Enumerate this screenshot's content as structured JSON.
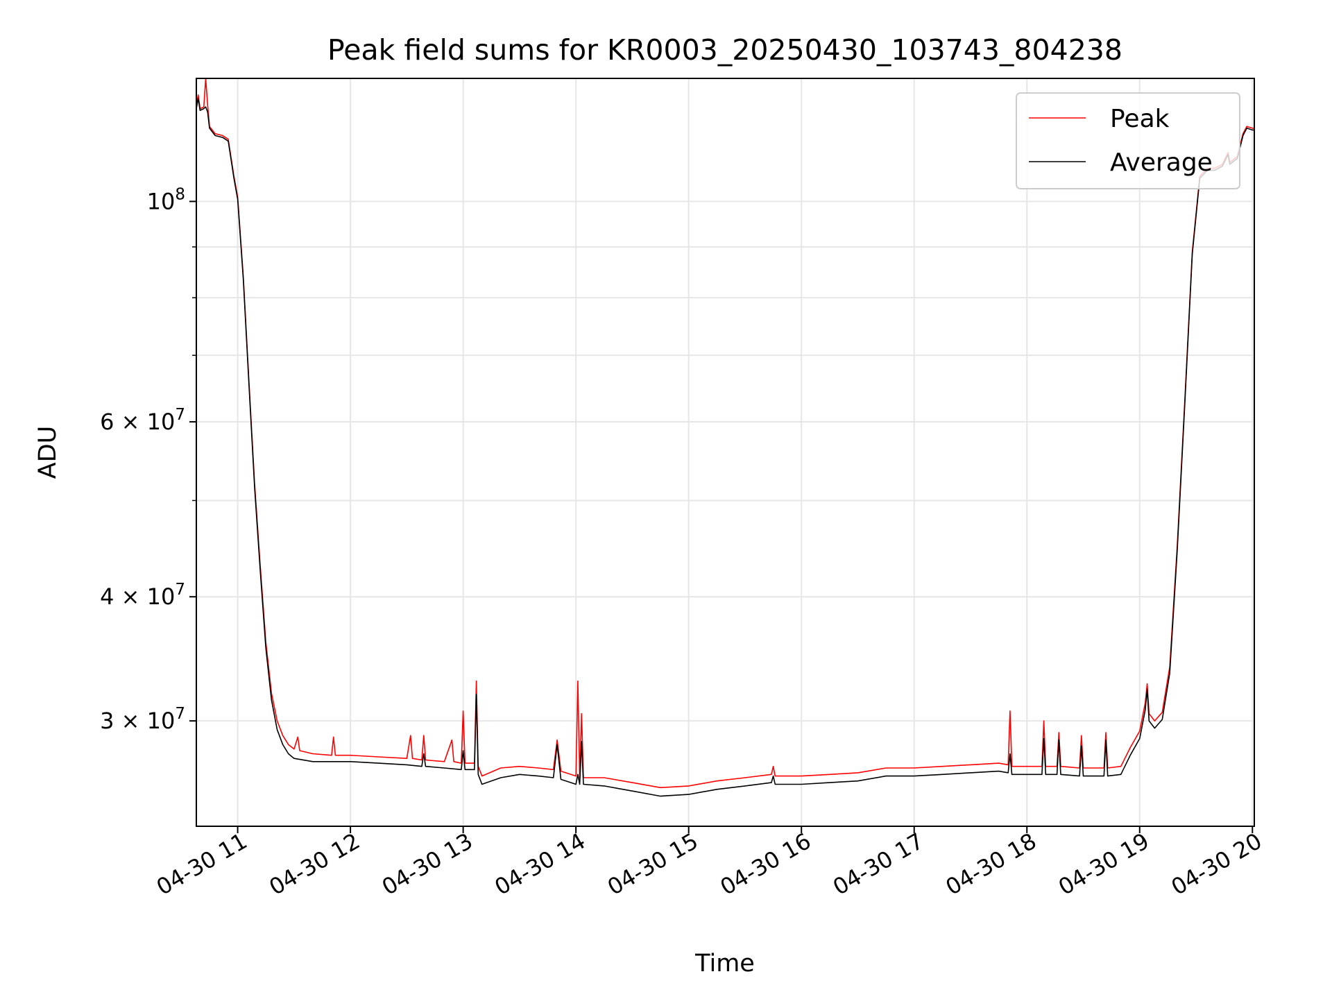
{
  "chart_data": {
    "type": "line",
    "title": "Peak field sums for KR0003_20250430_103743_804238",
    "xlabel": "Time",
    "ylabel": "ADU",
    "x_scale": "time",
    "y_scale": "log",
    "xlim": [
      "2025-04-30 10:38",
      "2025-04-30 20:01"
    ],
    "ylim": [
      23500000,
      133000000
    ],
    "grid": true,
    "legend_position": "top-right",
    "x_ticks": [
      {
        "label": "04-30 11",
        "value": "2025-04-30 11:00"
      },
      {
        "label": "04-30 12",
        "value": "2025-04-30 12:00"
      },
      {
        "label": "04-30 13",
        "value": "2025-04-30 13:00"
      },
      {
        "label": "04-30 14",
        "value": "2025-04-30 14:00"
      },
      {
        "label": "04-30 15",
        "value": "2025-04-30 15:00"
      },
      {
        "label": "04-30 16",
        "value": "2025-04-30 16:00"
      },
      {
        "label": "04-30 17",
        "value": "2025-04-30 17:00"
      },
      {
        "label": "04-30 18",
        "value": "2025-04-30 18:00"
      },
      {
        "label": "04-30 19",
        "value": "2025-04-30 19:00"
      },
      {
        "label": "04-30 20",
        "value": "2025-04-30 20:00"
      }
    ],
    "y_ticks": [
      {
        "value": 30000000,
        "mant": "3",
        "exp": "7"
      },
      {
        "value": 40000000,
        "mant": "4",
        "exp": "7"
      },
      {
        "value": 60000000,
        "mant": "6",
        "exp": "7"
      },
      {
        "value": 100000000,
        "mant": "",
        "exp": "8"
      }
    ],
    "y_minor_ticks": [
      50000000,
      70000000,
      80000000,
      90000000
    ],
    "series": [
      {
        "name": "Peak",
        "color": "#ff0000",
        "points": [
          [
            "2025-04-30 10:38",
            125000000
          ],
          [
            "2025-04-30 10:39",
            128000000
          ],
          [
            "2025-04-30 10:40",
            124000000
          ],
          [
            "2025-04-30 10:42",
            124500000
          ],
          [
            "2025-04-30 10:43",
            133000000
          ],
          [
            "2025-04-30 10:44",
            125000000
          ],
          [
            "2025-04-30 10:45",
            119000000
          ],
          [
            "2025-04-30 10:48",
            117000000
          ],
          [
            "2025-04-30 10:52",
            116500000
          ],
          [
            "2025-04-30 10:55",
            115500000
          ],
          [
            "2025-04-30 10:58",
            106000000
          ],
          [
            "2025-04-30 11:00",
            101000000
          ],
          [
            "2025-04-30 11:03",
            84000000
          ],
          [
            "2025-04-30 11:06",
            66000000
          ],
          [
            "2025-04-30 11:09",
            52000000
          ],
          [
            "2025-04-30 11:12",
            43000000
          ],
          [
            "2025-04-30 11:15",
            36000000
          ],
          [
            "2025-04-30 11:18",
            32000000
          ],
          [
            "2025-04-30 11:21",
            30000000
          ],
          [
            "2025-04-30 11:24",
            29000000
          ],
          [
            "2025-04-30 11:27",
            28400000
          ],
          [
            "2025-04-30 11:30",
            28100000
          ],
          [
            "2025-04-30 11:32",
            28900000
          ],
          [
            "2025-04-30 11:33",
            28000000
          ],
          [
            "2025-04-30 11:40",
            27800000
          ],
          [
            "2025-04-30 11:50",
            27700000
          ],
          [
            "2025-04-30 11:51",
            28900000
          ],
          [
            "2025-04-30 11:52",
            27700000
          ],
          [
            "2025-04-30 12:00",
            27700000
          ],
          [
            "2025-04-30 12:15",
            27600000
          ],
          [
            "2025-04-30 12:30",
            27500000
          ],
          [
            "2025-04-30 12:32",
            29000000
          ],
          [
            "2025-04-30 12:33",
            27500000
          ],
          [
            "2025-04-30 12:38",
            27400000
          ],
          [
            "2025-04-30 12:39",
            29000000
          ],
          [
            "2025-04-30 12:40",
            27400000
          ],
          [
            "2025-04-30 12:50",
            27300000
          ],
          [
            "2025-04-30 12:54",
            28700000
          ],
          [
            "2025-04-30 12:55",
            27300000
          ],
          [
            "2025-04-30 12:59",
            27200000
          ],
          [
            "2025-04-30 13:00",
            30700000
          ],
          [
            "2025-04-30 13:01",
            27200000
          ],
          [
            "2025-04-30 13:06",
            27200000
          ],
          [
            "2025-04-30 13:07",
            32900000
          ],
          [
            "2025-04-30 13:08",
            27000000
          ],
          [
            "2025-04-30 13:10",
            26400000
          ],
          [
            "2025-04-30 13:20",
            26900000
          ],
          [
            "2025-04-30 13:30",
            27000000
          ],
          [
            "2025-04-30 13:40",
            26900000
          ],
          [
            "2025-04-30 13:48",
            26800000
          ],
          [
            "2025-04-30 13:50",
            28700000
          ],
          [
            "2025-04-30 13:52",
            26700000
          ],
          [
            "2025-04-30 14:00",
            26400000
          ],
          [
            "2025-04-30 14:01",
            32900000
          ],
          [
            "2025-04-30 14:02",
            26300000
          ],
          [
            "2025-04-30 14:03",
            30500000
          ],
          [
            "2025-04-30 14:04",
            26300000
          ],
          [
            "2025-04-30 14:15",
            26300000
          ],
          [
            "2025-04-30 14:30",
            26000000
          ],
          [
            "2025-04-30 14:45",
            25700000
          ],
          [
            "2025-04-30 15:00",
            25800000
          ],
          [
            "2025-04-30 15:15",
            26100000
          ],
          [
            "2025-04-30 15:30",
            26300000
          ],
          [
            "2025-04-30 15:44",
            26500000
          ],
          [
            "2025-04-30 15:45",
            27000000
          ],
          [
            "2025-04-30 15:46",
            26400000
          ],
          [
            "2025-04-30 16:00",
            26400000
          ],
          [
            "2025-04-30 16:15",
            26500000
          ],
          [
            "2025-04-30 16:30",
            26600000
          ],
          [
            "2025-04-30 16:45",
            26900000
          ],
          [
            "2025-04-30 17:00",
            26900000
          ],
          [
            "2025-04-30 17:15",
            27000000
          ],
          [
            "2025-04-30 17:30",
            27100000
          ],
          [
            "2025-04-30 17:45",
            27200000
          ],
          [
            "2025-04-30 17:50",
            27100000
          ],
          [
            "2025-04-30 17:51",
            30700000
          ],
          [
            "2025-04-30 17:52",
            27000000
          ],
          [
            "2025-04-30 18:00",
            27000000
          ],
          [
            "2025-04-30 18:08",
            27000000
          ],
          [
            "2025-04-30 18:09",
            30000000
          ],
          [
            "2025-04-30 18:10",
            27000000
          ],
          [
            "2025-04-30 18:16",
            27000000
          ],
          [
            "2025-04-30 18:17",
            29200000
          ],
          [
            "2025-04-30 18:18",
            27000000
          ],
          [
            "2025-04-30 18:28",
            26900000
          ],
          [
            "2025-04-30 18:29",
            29000000
          ],
          [
            "2025-04-30 18:30",
            26900000
          ],
          [
            "2025-04-30 18:41",
            26900000
          ],
          [
            "2025-04-30 18:42",
            29200000
          ],
          [
            "2025-04-30 18:43",
            26900000
          ],
          [
            "2025-04-30 18:50",
            27000000
          ],
          [
            "2025-04-30 18:55",
            28200000
          ],
          [
            "2025-04-30 19:00",
            29300000
          ],
          [
            "2025-04-30 19:03",
            31300000
          ],
          [
            "2025-04-30 19:04",
            32700000
          ],
          [
            "2025-04-30 19:05",
            30500000
          ],
          [
            "2025-04-30 19:08",
            30000000
          ],
          [
            "2025-04-30 19:12",
            30600000
          ],
          [
            "2025-04-30 19:16",
            34000000
          ],
          [
            "2025-04-30 19:20",
            45000000
          ],
          [
            "2025-04-30 19:24",
            63000000
          ],
          [
            "2025-04-30 19:28",
            89000000
          ],
          [
            "2025-04-30 19:32",
            106000000
          ],
          [
            "2025-04-30 19:36",
            108000000
          ],
          [
            "2025-04-30 19:40",
            108000000
          ],
          [
            "2025-04-30 19:44",
            109000000
          ],
          [
            "2025-04-30 19:47",
            112000000
          ],
          [
            "2025-04-30 19:48",
            109500000
          ],
          [
            "2025-04-30 19:52",
            111000000
          ],
          [
            "2025-04-30 19:55",
            117000000
          ],
          [
            "2025-04-30 19:57",
            119000000
          ],
          [
            "2025-04-30 20:00",
            118500000
          ],
          [
            "2025-04-30 20:01",
            118500000
          ]
        ]
      },
      {
        "name": "Average",
        "color": "#000000",
        "points": [
          [
            "2025-04-30 10:38",
            124000000
          ],
          [
            "2025-04-30 10:39",
            127000000
          ],
          [
            "2025-04-30 10:40",
            123500000
          ],
          [
            "2025-04-30 10:42",
            124000000
          ],
          [
            "2025-04-30 10:43",
            124500000
          ],
          [
            "2025-04-30 10:44",
            123000000
          ],
          [
            "2025-04-30 10:45",
            118500000
          ],
          [
            "2025-04-30 10:48",
            116500000
          ],
          [
            "2025-04-30 10:52",
            116000000
          ],
          [
            "2025-04-30 10:55",
            115000000
          ],
          [
            "2025-04-30 10:58",
            105500000
          ],
          [
            "2025-04-30 11:00",
            100500000
          ],
          [
            "2025-04-30 11:03",
            83500000
          ],
          [
            "2025-04-30 11:06",
            65500000
          ],
          [
            "2025-04-30 11:09",
            51500000
          ],
          [
            "2025-04-30 11:12",
            42500000
          ],
          [
            "2025-04-30 11:15",
            35500000
          ],
          [
            "2025-04-30 11:18",
            31500000
          ],
          [
            "2025-04-30 11:21",
            29400000
          ],
          [
            "2025-04-30 11:24",
            28400000
          ],
          [
            "2025-04-30 11:27",
            27800000
          ],
          [
            "2025-04-30 11:30",
            27500000
          ],
          [
            "2025-04-30 11:40",
            27300000
          ],
          [
            "2025-04-30 11:50",
            27300000
          ],
          [
            "2025-04-30 12:00",
            27300000
          ],
          [
            "2025-04-30 12:15",
            27200000
          ],
          [
            "2025-04-30 12:30",
            27100000
          ],
          [
            "2025-04-30 12:38",
            27000000
          ],
          [
            "2025-04-30 12:39",
            27800000
          ],
          [
            "2025-04-30 12:40",
            27000000
          ],
          [
            "2025-04-30 12:50",
            26900000
          ],
          [
            "2025-04-30 12:59",
            26800000
          ],
          [
            "2025-04-30 13:00",
            28000000
          ],
          [
            "2025-04-30 13:01",
            26800000
          ],
          [
            "2025-04-30 13:06",
            26800000
          ],
          [
            "2025-04-30 13:07",
            31900000
          ],
          [
            "2025-04-30 13:08",
            26500000
          ],
          [
            "2025-04-30 13:10",
            25900000
          ],
          [
            "2025-04-30 13:20",
            26300000
          ],
          [
            "2025-04-30 13:30",
            26500000
          ],
          [
            "2025-04-30 13:40",
            26400000
          ],
          [
            "2025-04-30 13:48",
            26300000
          ],
          [
            "2025-04-30 13:50",
            28400000
          ],
          [
            "2025-04-30 13:52",
            26200000
          ],
          [
            "2025-04-30 14:00",
            25900000
          ],
          [
            "2025-04-30 14:01",
            26500000
          ],
          [
            "2025-04-30 14:02",
            25900000
          ],
          [
            "2025-04-30 14:03",
            28600000
          ],
          [
            "2025-04-30 14:04",
            25900000
          ],
          [
            "2025-04-30 14:15",
            25800000
          ],
          [
            "2025-04-30 14:30",
            25500000
          ],
          [
            "2025-04-30 14:45",
            25200000
          ],
          [
            "2025-04-30 15:00",
            25300000
          ],
          [
            "2025-04-30 15:15",
            25600000
          ],
          [
            "2025-04-30 15:30",
            25800000
          ],
          [
            "2025-04-30 15:44",
            26000000
          ],
          [
            "2025-04-30 15:45",
            26400000
          ],
          [
            "2025-04-30 15:46",
            25900000
          ],
          [
            "2025-04-30 16:00",
            25900000
          ],
          [
            "2025-04-30 16:15",
            26000000
          ],
          [
            "2025-04-30 16:30",
            26100000
          ],
          [
            "2025-04-30 16:45",
            26400000
          ],
          [
            "2025-04-30 17:00",
            26400000
          ],
          [
            "2025-04-30 17:15",
            26500000
          ],
          [
            "2025-04-30 17:30",
            26600000
          ],
          [
            "2025-04-30 17:45",
            26700000
          ],
          [
            "2025-04-30 17:50",
            26600000
          ],
          [
            "2025-04-30 17:51",
            27800000
          ],
          [
            "2025-04-30 17:52",
            26500000
          ],
          [
            "2025-04-30 18:00",
            26500000
          ],
          [
            "2025-04-30 18:08",
            26500000
          ],
          [
            "2025-04-30 18:09",
            28800000
          ],
          [
            "2025-04-30 18:10",
            26500000
          ],
          [
            "2025-04-30 18:16",
            26500000
          ],
          [
            "2025-04-30 18:17",
            28700000
          ],
          [
            "2025-04-30 18:18",
            26500000
          ],
          [
            "2025-04-30 18:28",
            26400000
          ],
          [
            "2025-04-30 18:29",
            28300000
          ],
          [
            "2025-04-30 18:30",
            26400000
          ],
          [
            "2025-04-30 18:41",
            26400000
          ],
          [
            "2025-04-30 18:42",
            28700000
          ],
          [
            "2025-04-30 18:43",
            26400000
          ],
          [
            "2025-04-30 18:50",
            26500000
          ],
          [
            "2025-04-30 18:55",
            27700000
          ],
          [
            "2025-04-30 19:00",
            28800000
          ],
          [
            "2025-04-30 19:03",
            30800000
          ],
          [
            "2025-04-30 19:04",
            32300000
          ],
          [
            "2025-04-30 19:05",
            30000000
          ],
          [
            "2025-04-30 19:08",
            29500000
          ],
          [
            "2025-04-30 19:12",
            30100000
          ],
          [
            "2025-04-30 19:16",
            33500000
          ],
          [
            "2025-04-30 19:20",
            44500000
          ],
          [
            "2025-04-30 19:24",
            62500000
          ],
          [
            "2025-04-30 19:28",
            88500000
          ],
          [
            "2025-04-30 19:32",
            105500000
          ],
          [
            "2025-04-30 19:36",
            107500000
          ],
          [
            "2025-04-30 19:40",
            107500000
          ],
          [
            "2025-04-30 19:44",
            108500000
          ],
          [
            "2025-04-30 19:47",
            111500000
          ],
          [
            "2025-04-30 19:48",
            109000000
          ],
          [
            "2025-04-30 19:52",
            110500000
          ],
          [
            "2025-04-30 19:55",
            116500000
          ],
          [
            "2025-04-30 19:57",
            118500000
          ],
          [
            "2025-04-30 20:00",
            118000000
          ],
          [
            "2025-04-30 20:01",
            118000000
          ]
        ]
      }
    ]
  }
}
